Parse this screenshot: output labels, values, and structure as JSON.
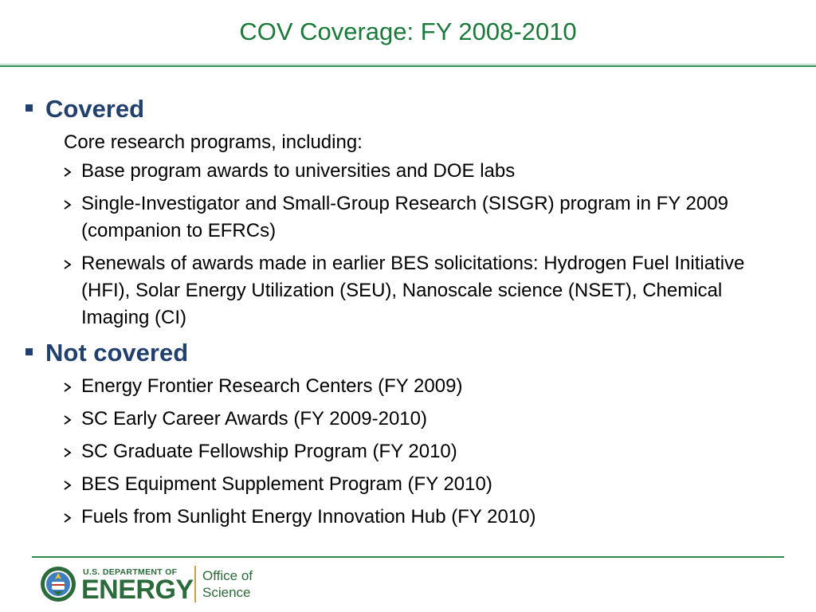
{
  "slide": {
    "title": "COV Coverage:  FY 2008-2010"
  },
  "covered": {
    "heading": "Covered",
    "intro": "Core research programs, including:",
    "items": [
      "Base program awards to universities and DOE labs",
      "Single-Investigator and Small-Group Research (SISGR) program in FY 2009 (companion to EFRCs)",
      "Renewals of awards made in earlier BES solicitations:  Hydrogen Fuel Initiative (HFI), Solar Energy Utilization (SEU), Nanoscale science (NSET), Chemical Imaging (CI)"
    ]
  },
  "not_covered": {
    "heading": "Not covered",
    "items": [
      "Energy Frontier Research Centers (FY 2009)",
      "SC Early Career Awards (FY 2009-2010)",
      "SC Graduate Fellowship Program (FY 2010)",
      "BES Equipment Supplement Program (FY 2010)",
      "Fuels from Sunlight Energy Innovation Hub (FY 2010)"
    ]
  },
  "footer": {
    "dept_line": "U.S. DEPARTMENT OF",
    "energy_word": "ENERGY",
    "office_line1": "Office of",
    "office_line2": "Science"
  },
  "colors": {
    "title_green": "#1a7a3a",
    "heading_navy": "#21406e",
    "rule_green": "#2e8b4d",
    "logo_gold": "#c9a43a"
  },
  "icons": {
    "section_bullet": "square-bullet-icon",
    "item_bullet": "arrowhead-bullet-icon",
    "logo_seal": "doe-seal-icon"
  }
}
